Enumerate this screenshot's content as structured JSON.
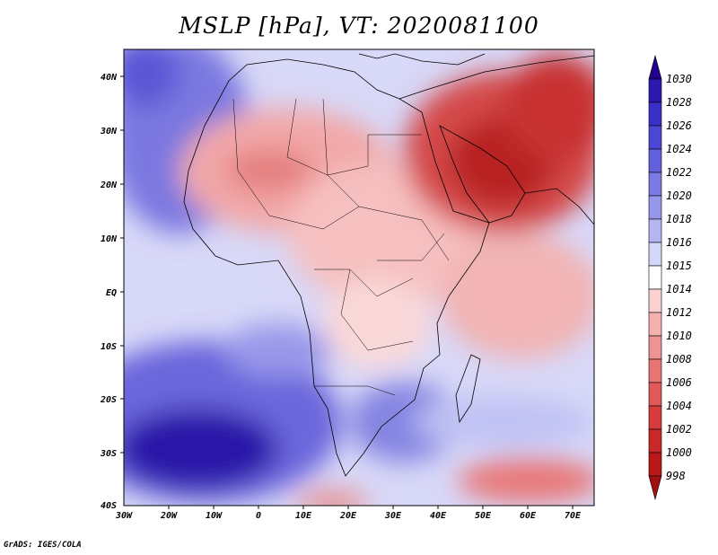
{
  "title": "MSLP [hPa], VT: 2020081100",
  "credit": "GrADS: IGES/COLA",
  "map": {
    "lat_labels": [
      "40N",
      "30N",
      "20N",
      "10N",
      "EQ",
      "10S",
      "20S",
      "30S",
      "40S"
    ],
    "lon_labels": [
      "30W",
      "20W",
      "10W",
      "0",
      "10E",
      "20E",
      "30E",
      "40E",
      "50E",
      "60E",
      "70E"
    ]
  },
  "colorbar": {
    "labels": [
      "1030",
      "1028",
      "1026",
      "1024",
      "1022",
      "1020",
      "1018",
      "1016",
      "1015",
      "1014",
      "1012",
      "1010",
      "1008",
      "1006",
      "1004",
      "1002",
      "1000",
      "998"
    ],
    "colors": [
      "#20008c",
      "#2b18b0",
      "#3a2fc8",
      "#4c46d6",
      "#6260dc",
      "#7a7ae2",
      "#9696ea",
      "#b4b6f2",
      "#d4d6fa",
      "#ffffff",
      "#fad0d0",
      "#f5b0b0",
      "#ee9292",
      "#e87474",
      "#e05858",
      "#d63c3c",
      "#c82828",
      "#b81818",
      "#a01010"
    ]
  }
}
